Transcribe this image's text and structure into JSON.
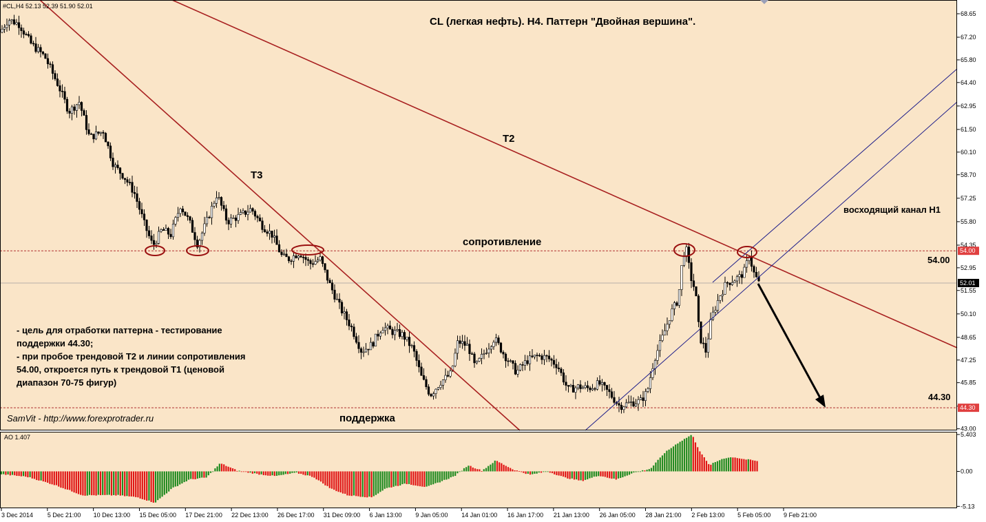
{
  "colors": {
    "background": "#fae5c8",
    "frame": "#000000",
    "candles": "#000000",
    "trendline_red": "#a82020",
    "channel_blue": "#1f1f8a",
    "level_red": "#b03030",
    "ao_up": "#1f8a1f",
    "ao_down": "#e01515",
    "price_label_bg": "#e04040",
    "current_price_bg": "#000000",
    "ellipse": "#9a1010",
    "arrow": "#000000"
  },
  "header": {
    "symbol_info": "#CL,H4  52.13 52.39 51.90 52.01",
    "chart_title": "CL (легкая нефть). H4. Паттерн \"Двойная вершина\"."
  },
  "chart_data": {
    "type": "candlestick",
    "symbol": "#CL",
    "timeframe": "H4",
    "ohlc_last": {
      "open": 52.13,
      "high": 52.39,
      "low": 51.9,
      "close": 52.01
    },
    "y_axis_ticks": [
      "68.65",
      "67.20",
      "65.80",
      "64.40",
      "62.95",
      "61.50",
      "60.10",
      "58.70",
      "57.25",
      "55.80",
      "54.35",
      "52.95",
      "51.55",
      "50.10",
      "48.65",
      "47.25",
      "45.85",
      "44.40",
      "43.00"
    ],
    "ylim": [
      42.9,
      69.5
    ],
    "x_axis_ticks": [
      "3 Dec 2014",
      "5 Dec 21:00",
      "10 Dec 13:00",
      "15 Dec 05:00",
      "17 Dec 21:00",
      "22 Dec 13:00",
      "26 Dec 17:00",
      "31 Dec 09:00",
      "6 Jan 13:00",
      "9 Jan 05:00",
      "14 Jan 01:00",
      "16 Jan 17:00",
      "21 Jan 13:00",
      "26 Jan 05:00",
      "28 Jan 21:00",
      "2 Feb 13:00",
      "5 Feb 05:00",
      "9 Feb 21:00"
    ],
    "price_path": [
      [
        0,
        67.5
      ],
      [
        12,
        68.3
      ],
      [
        28,
        68.0
      ],
      [
        45,
        66.8
      ],
      [
        65,
        66.0
      ],
      [
        85,
        64.2
      ],
      [
        100,
        62.6
      ],
      [
        115,
        63.2
      ],
      [
        130,
        61.0
      ],
      [
        150,
        61.4
      ],
      [
        165,
        59.3
      ],
      [
        180,
        58.6
      ],
      [
        195,
        57.6
      ],
      [
        210,
        55.6
      ],
      [
        222,
        54.3
      ],
      [
        235,
        55.3
      ],
      [
        248,
        55.0
      ],
      [
        262,
        56.8
      ],
      [
        275,
        55.8
      ],
      [
        287,
        54.4
      ],
      [
        300,
        55.8
      ],
      [
        315,
        57.5
      ],
      [
        330,
        55.8
      ],
      [
        350,
        56.2
      ],
      [
        365,
        56.6
      ],
      [
        380,
        55.6
      ],
      [
        395,
        55.0
      ],
      [
        410,
        53.6
      ],
      [
        420,
        53.5
      ],
      [
        435,
        53.9
      ],
      [
        450,
        53.2
      ],
      [
        465,
        53.5
      ],
      [
        478,
        52.0
      ],
      [
        495,
        50.4
      ],
      [
        510,
        49.3
      ],
      [
        525,
        47.8
      ],
      [
        540,
        48.2
      ],
      [
        555,
        49.3
      ],
      [
        570,
        49.0
      ],
      [
        585,
        48.8
      ],
      [
        600,
        47.9
      ],
      [
        612,
        46.2
      ],
      [
        625,
        45.1
      ],
      [
        640,
        45.9
      ],
      [
        655,
        46.4
      ],
      [
        665,
        48.4
      ],
      [
        680,
        48.1
      ],
      [
        690,
        46.8
      ],
      [
        705,
        47.8
      ],
      [
        718,
        48.6
      ],
      [
        732,
        47.6
      ],
      [
        750,
        46.5
      ],
      [
        765,
        47.2
      ],
      [
        780,
        47.5
      ],
      [
        795,
        47.4
      ],
      [
        810,
        46.9
      ],
      [
        825,
        45.4
      ],
      [
        840,
        45.6
      ],
      [
        855,
        45.5
      ],
      [
        870,
        45.8
      ],
      [
        885,
        45.2
      ],
      [
        900,
        44.4
      ],
      [
        915,
        44.6
      ],
      [
        930,
        44.7
      ],
      [
        940,
        45.3
      ],
      [
        950,
        47.3
      ],
      [
        960,
        48.4
      ],
      [
        975,
        50.2
      ],
      [
        985,
        51.0
      ],
      [
        992,
        53.8
      ],
      [
        997,
        54.0
      ],
      [
        1003,
        52.4
      ],
      [
        1010,
        51.5
      ],
      [
        1016,
        48.7
      ],
      [
        1025,
        47.8
      ],
      [
        1033,
        49.8
      ],
      [
        1045,
        51.2
      ],
      [
        1055,
        52.0
      ],
      [
        1065,
        52.2
      ],
      [
        1075,
        52.4
      ],
      [
        1082,
        52.8
      ],
      [
        1088,
        53.8
      ],
      [
        1094,
        52.7
      ],
      [
        1102,
        52.0
      ]
    ],
    "ao_value": 1.407,
    "ao_ticks": [
      "5.403",
      "0.00",
      "-5.13"
    ],
    "ao_ylim": [
      -5.4,
      5.7
    ],
    "ao_path": [
      [
        0,
        -0.4
      ],
      [
        40,
        -0.8
      ],
      [
        80,
        -2.0
      ],
      [
        120,
        -3.5
      ],
      [
        170,
        -3.5
      ],
      [
        200,
        -3.8
      ],
      [
        225,
        -4.6
      ],
      [
        250,
        -2.5
      ],
      [
        275,
        -1.2
      ],
      [
        300,
        -0.9
      ],
      [
        320,
        1.2
      ],
      [
        345,
        0.1
      ],
      [
        375,
        -0.4
      ],
      [
        400,
        -0.7
      ],
      [
        430,
        -0.2
      ],
      [
        455,
        -0.8
      ],
      [
        480,
        -2.5
      ],
      [
        505,
        -3.5
      ],
      [
        540,
        -3.8
      ],
      [
        560,
        -2.5
      ],
      [
        590,
        -1.8
      ],
      [
        620,
        -2.3
      ],
      [
        640,
        -1.5
      ],
      [
        660,
        -0.7
      ],
      [
        680,
        0.9
      ],
      [
        700,
        0.1
      ],
      [
        720,
        1.6
      ],
      [
        745,
        0.3
      ],
      [
        770,
        -0.5
      ],
      [
        795,
        0.0
      ],
      [
        820,
        -0.9
      ],
      [
        845,
        -1.4
      ],
      [
        870,
        -0.6
      ],
      [
        895,
        -1.2
      ],
      [
        920,
        -0.2
      ],
      [
        945,
        0.4
      ],
      [
        965,
        2.7
      ],
      [
        985,
        4.2
      ],
      [
        1005,
        5.4
      ],
      [
        1015,
        3.2
      ],
      [
        1030,
        0.9
      ],
      [
        1050,
        1.9
      ],
      [
        1065,
        2.1
      ],
      [
        1080,
        1.8
      ],
      [
        1095,
        1.6
      ],
      [
        1102,
        1.4
      ]
    ],
    "levels": [
      {
        "name": "resistance",
        "price": 54.0,
        "label": "54.00"
      },
      {
        "name": "support",
        "price": 44.3,
        "label": "44.30"
      },
      {
        "name": "current",
        "price": 52.01,
        "label": "52.01"
      }
    ]
  },
  "annotations": {
    "t3_label": "T3",
    "t2_label": "T2",
    "resistance_label": "сопротивление",
    "support_label": "поддержка",
    "channel_label": "восходящий канал Н1",
    "level_54_text": "54.00",
    "level_44_text": "44.30",
    "note_lines": [
      "- цель для отработки паттерна - тестирование",
      "поддержки 44.30;",
      "- при пробое трендовой Т2 и линии сопротивления",
      "54.00, откроется путь к трендовой Т1 (ценовой",
      "диапазон 70-75 фигур)"
    ],
    "watermark": "SamVit - http://www.forexprotrader.ru"
  },
  "indicator": {
    "label": "AO 1.407"
  }
}
